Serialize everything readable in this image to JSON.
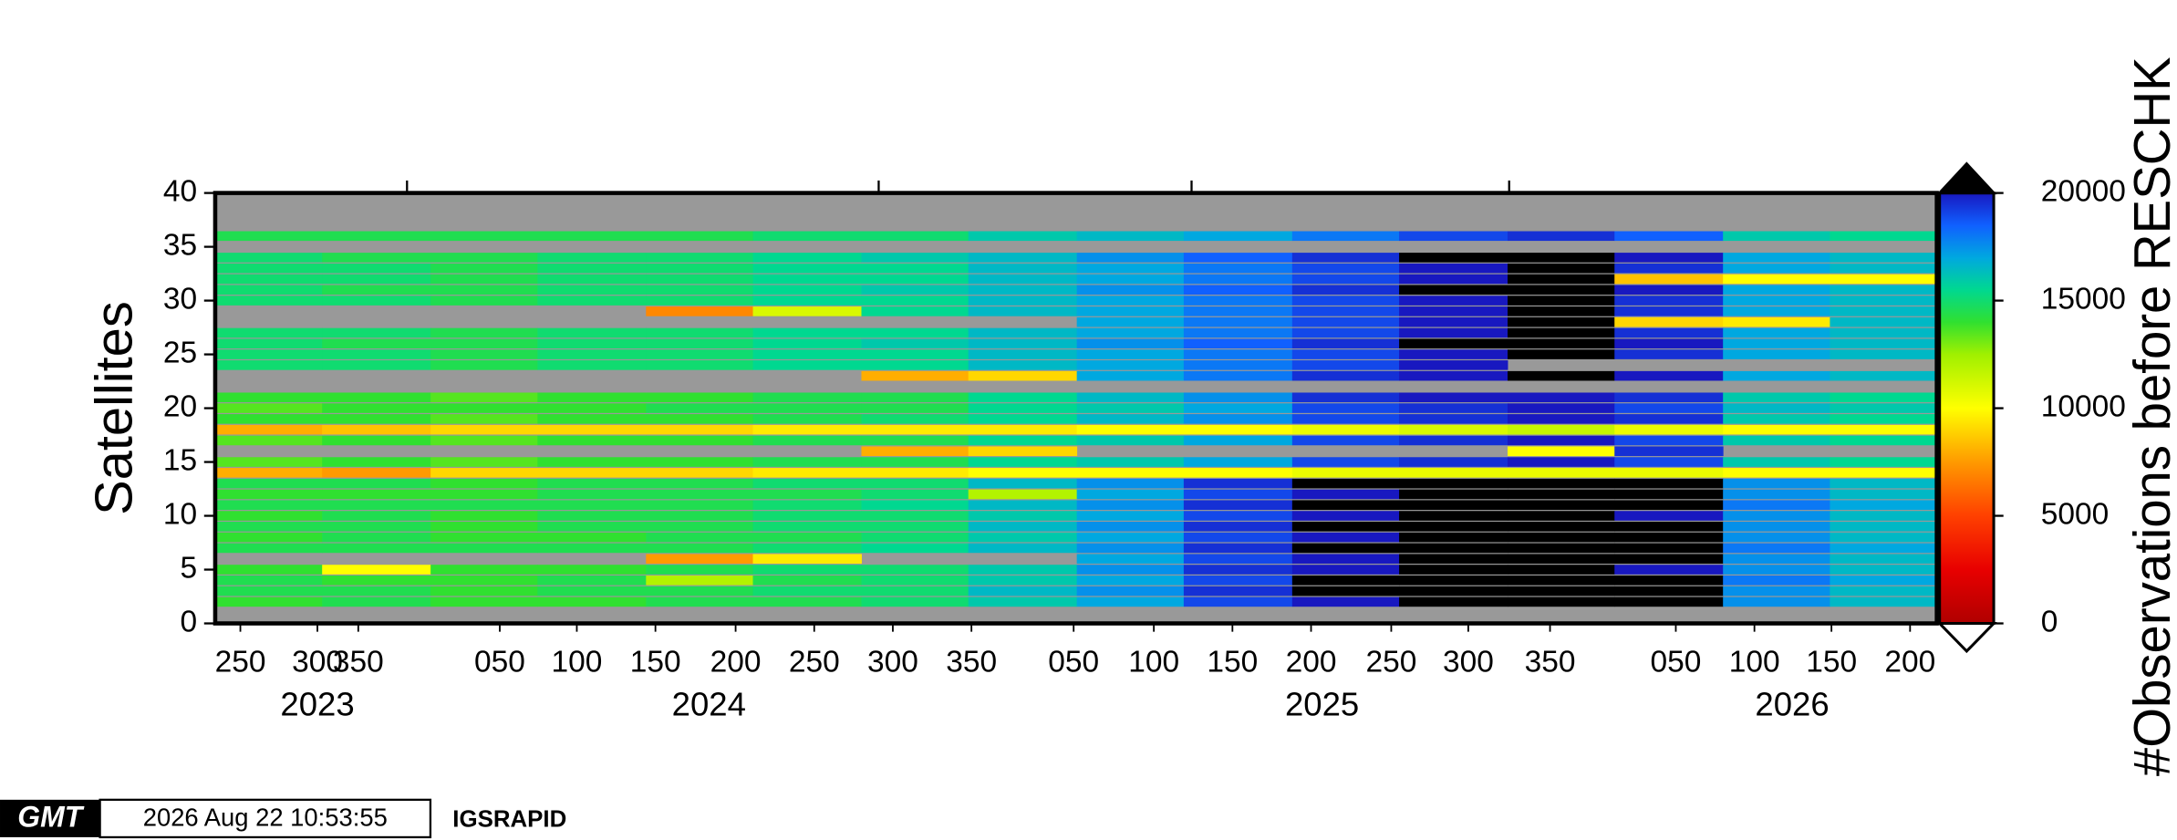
{
  "chart_data": {
    "type": "heatmap",
    "ylabel": "Satellites",
    "xlim": [
      234,
      1329
    ],
    "ylim": [
      0,
      40
    ],
    "yticks": [
      0,
      5,
      10,
      15,
      20,
      25,
      30,
      35,
      40
    ],
    "xticks": [
      {
        "value": 250,
        "label": "250"
      },
      {
        "value": 299,
        "label": "300"
      },
      {
        "value": 325,
        "label": "350"
      },
      {
        "value": 415,
        "label": "050"
      },
      {
        "value": 464,
        "label": "100"
      },
      {
        "value": 514,
        "label": "150"
      },
      {
        "value": 565,
        "label": "200"
      },
      {
        "value": 615,
        "label": "250"
      },
      {
        "value": 665,
        "label": "300"
      },
      {
        "value": 715,
        "label": "350"
      },
      {
        "value": 780,
        "label": "050"
      },
      {
        "value": 831,
        "label": "100"
      },
      {
        "value": 881,
        "label": "150"
      },
      {
        "value": 931,
        "label": "200"
      },
      {
        "value": 982,
        "label": "250"
      },
      {
        "value": 1031,
        "label": "300"
      },
      {
        "value": 1083,
        "label": "350"
      },
      {
        "value": 1163,
        "label": "050"
      },
      {
        "value": 1213,
        "label": "100"
      },
      {
        "value": 1262,
        "label": "150"
      },
      {
        "value": 1312,
        "label": "200"
      }
    ],
    "year_labels": [
      {
        "value": 299,
        "label": "2023"
      },
      {
        "value": 548,
        "label": "2024"
      },
      {
        "value": 938,
        "label": "2025"
      },
      {
        "value": 1237,
        "label": "2026"
      }
    ],
    "top_ticks": [
      356,
      656,
      855,
      1057
    ],
    "x_edges": [
      234,
      302,
      371,
      439,
      508,
      576,
      645,
      713,
      782,
      850,
      919,
      987,
      1056,
      1124,
      1193,
      1261,
      1329
    ],
    "y": [
      1,
      2,
      3,
      4,
      5,
      6,
      7,
      8,
      9,
      10,
      11,
      12,
      13,
      14,
      15,
      16,
      17,
      18,
      19,
      20,
      21,
      22,
      23,
      24,
      25,
      26,
      27,
      28,
      29,
      30,
      31,
      32,
      33,
      34,
      35,
      36
    ],
    "z": [
      [
        null,
        null,
        null,
        null,
        null,
        null,
        null,
        null,
        null,
        null,
        null,
        null,
        null,
        null,
        null,
        null
      ],
      [
        14000,
        14500,
        14000,
        14000,
        14500,
        14500,
        15000,
        16000,
        17000,
        19000,
        20000,
        20500,
        20500,
        20500,
        17500,
        16500
      ],
      [
        14500,
        14500,
        14000,
        14500,
        14500,
        15000,
        15000,
        16500,
        17500,
        19500,
        20500,
        21000,
        20500,
        20500,
        17500,
        16500
      ],
      [
        14500,
        14000,
        14000,
        14500,
        12000,
        14500,
        15000,
        16000,
        17000,
        19000,
        20500,
        20500,
        21000,
        20500,
        18000,
        17000
      ],
      [
        14000,
        10000,
        14000,
        14000,
        14500,
        15000,
        15000,
        16000,
        17500,
        19500,
        20000,
        20500,
        20500,
        20000,
        17500,
        16500
      ],
      [
        null,
        null,
        null,
        null,
        7500,
        9500,
        null,
        null,
        17000,
        19000,
        20000,
        20500,
        20500,
        20500,
        17500,
        16500
      ],
      [
        14500,
        14500,
        14500,
        14500,
        14500,
        15000,
        15500,
        16500,
        17500,
        19500,
        20500,
        21000,
        21000,
        20500,
        18000,
        17000
      ],
      [
        14000,
        14500,
        14000,
        14000,
        14500,
        14500,
        15000,
        16000,
        17000,
        19000,
        20000,
        20500,
        20500,
        20500,
        17500,
        16500
      ],
      [
        14500,
        14500,
        14000,
        14500,
        14500,
        15000,
        15000,
        16500,
        17500,
        19500,
        20500,
        21000,
        20500,
        20500,
        17500,
        16500
      ],
      [
        14000,
        14500,
        14000,
        14500,
        14500,
        15000,
        15000,
        16000,
        17000,
        19000,
        20000,
        20500,
        20500,
        20000,
        17500,
        16500
      ],
      [
        14500,
        14500,
        14500,
        14500,
        14500,
        15000,
        15500,
        16500,
        17500,
        19500,
        20500,
        21000,
        21000,
        20500,
        18000,
        17000
      ],
      [
        14000,
        14000,
        14000,
        14500,
        14500,
        14500,
        15000,
        12000,
        17000,
        19000,
        20000,
        20500,
        21000,
        20500,
        17500,
        16500
      ],
      [
        14500,
        14500,
        14000,
        14500,
        14500,
        15000,
        15000,
        16500,
        17500,
        19500,
        20500,
        21000,
        20500,
        20500,
        17500,
        16500
      ],
      [
        8000,
        7500,
        9000,
        9000,
        9000,
        9500,
        9500,
        10000,
        10000,
        10000,
        10500,
        10500,
        10500,
        10500,
        10000,
        10000
      ],
      [
        13500,
        14000,
        13500,
        14000,
        14000,
        14500,
        14500,
        15500,
        16000,
        17000,
        19000,
        19500,
        20000,
        19000,
        16000,
        15500
      ],
      [
        null,
        null,
        null,
        null,
        null,
        null,
        8000,
        9000,
        null,
        null,
        null,
        null,
        10000,
        19500,
        null,
        null
      ],
      [
        13500,
        14000,
        13500,
        14000,
        14000,
        14500,
        14500,
        15500,
        16000,
        17000,
        19000,
        19500,
        20000,
        19000,
        16000,
        15500
      ],
      [
        8000,
        8500,
        9000,
        9000,
        9000,
        9500,
        9500,
        9500,
        10000,
        10000,
        10500,
        11000,
        11500,
        10500,
        10000,
        10000
      ],
      [
        14000,
        14000,
        13500,
        14000,
        14000,
        14500,
        15000,
        15500,
        16500,
        17500,
        19000,
        19500,
        20000,
        19500,
        16000,
        15500
      ],
      [
        13500,
        14000,
        14000,
        14000,
        14500,
        14500,
        14500,
        15500,
        16000,
        17000,
        19000,
        19500,
        20000,
        19000,
        16500,
        16000
      ],
      [
        14000,
        14000,
        13500,
        14000,
        14000,
        14500,
        14500,
        15500,
        16500,
        17500,
        19500,
        20000,
        20000,
        19500,
        16000,
        15500
      ],
      [
        null,
        null,
        null,
        null,
        null,
        null,
        null,
        null,
        null,
        null,
        null,
        null,
        null,
        null,
        null,
        null
      ],
      [
        null,
        null,
        null,
        null,
        null,
        null,
        8000,
        9000,
        17000,
        18000,
        19500,
        20000,
        20500,
        20000,
        17000,
        16500
      ],
      [
        15000,
        15000,
        14500,
        15000,
        15000,
        15500,
        15500,
        16500,
        17000,
        18000,
        19000,
        20000,
        null,
        null,
        null,
        null
      ],
      [
        15000,
        15000,
        14500,
        15000,
        15000,
        15500,
        15500,
        16500,
        17000,
        18000,
        19000,
        20000,
        20500,
        19500,
        17000,
        16500
      ],
      [
        15000,
        14500,
        14500,
        15000,
        15000,
        15500,
        16000,
        16500,
        17500,
        18500,
        19500,
        20500,
        20500,
        20000,
        17000,
        16500
      ],
      [
        15000,
        15000,
        14500,
        15000,
        15000,
        15500,
        15500,
        16500,
        17000,
        18000,
        19000,
        20000,
        20500,
        19500,
        17000,
        16500
      ],
      [
        null,
        null,
        null,
        null,
        null,
        null,
        null,
        null,
        17000,
        18000,
        19000,
        20000,
        20500,
        9000,
        9500,
        16500
      ],
      [
        null,
        null,
        null,
        null,
        7000,
        11000,
        15500,
        16500,
        17000,
        18000,
        19000,
        20000,
        20500,
        19500,
        17000,
        16500
      ],
      [
        15000,
        15000,
        14500,
        15000,
        15000,
        15500,
        15500,
        16500,
        17000,
        18000,
        19000,
        20000,
        20500,
        19500,
        17000,
        16500
      ],
      [
        15000,
        14500,
        14500,
        15000,
        15000,
        15500,
        16000,
        16500,
        17500,
        18500,
        19500,
        20500,
        20500,
        20000,
        17000,
        16500
      ],
      [
        15000,
        15000,
        14500,
        15000,
        15000,
        15500,
        15500,
        16500,
        17000,
        18000,
        19000,
        20000,
        20500,
        8500,
        10000,
        10000
      ],
      [
        15000,
        15000,
        14500,
        15000,
        15000,
        15500,
        15500,
        16500,
        17000,
        18000,
        19000,
        20000,
        20500,
        19500,
        17000,
        16500
      ],
      [
        15000,
        14500,
        14500,
        15000,
        15000,
        15500,
        16000,
        16500,
        17500,
        18500,
        19500,
        20500,
        20500,
        20000,
        17000,
        16500
      ],
      [
        null,
        null,
        null,
        null,
        null,
        null,
        null,
        null,
        null,
        null,
        null,
        null,
        null,
        null,
        null,
        null
      ],
      [
        14500,
        14500,
        14500,
        14500,
        14500,
        15000,
        15000,
        16000,
        16500,
        17000,
        18000,
        19000,
        19500,
        18500,
        16000,
        15500
      ]
    ],
    "nan_color": "#999999",
    "colorbar": {
      "label": "#Observations before RESCHK",
      "clim": [
        0,
        20000
      ],
      "ticks": [
        0,
        5000,
        10000,
        15000,
        20000
      ],
      "above_color": "#000000",
      "below_color": "#ffffff",
      "colormap": [
        {
          "value": 0,
          "color": "#b00000"
        },
        {
          "value": 2500,
          "color": "#e80000"
        },
        {
          "value": 5000,
          "color": "#ff4000"
        },
        {
          "value": 7500,
          "color": "#ff9a00"
        },
        {
          "value": 10000,
          "color": "#ffff00"
        },
        {
          "value": 12500,
          "color": "#a0f000"
        },
        {
          "value": 14000,
          "color": "#30e030"
        },
        {
          "value": 15500,
          "color": "#00d890"
        },
        {
          "value": 17000,
          "color": "#00a8e0"
        },
        {
          "value": 18500,
          "color": "#1060ff"
        },
        {
          "value": 20000,
          "color": "#1818c0"
        }
      ]
    }
  },
  "footer": {
    "logo": "GMT",
    "timestamp": "2026 Aug 22 10:53:55",
    "label": "IGSRAPID"
  }
}
